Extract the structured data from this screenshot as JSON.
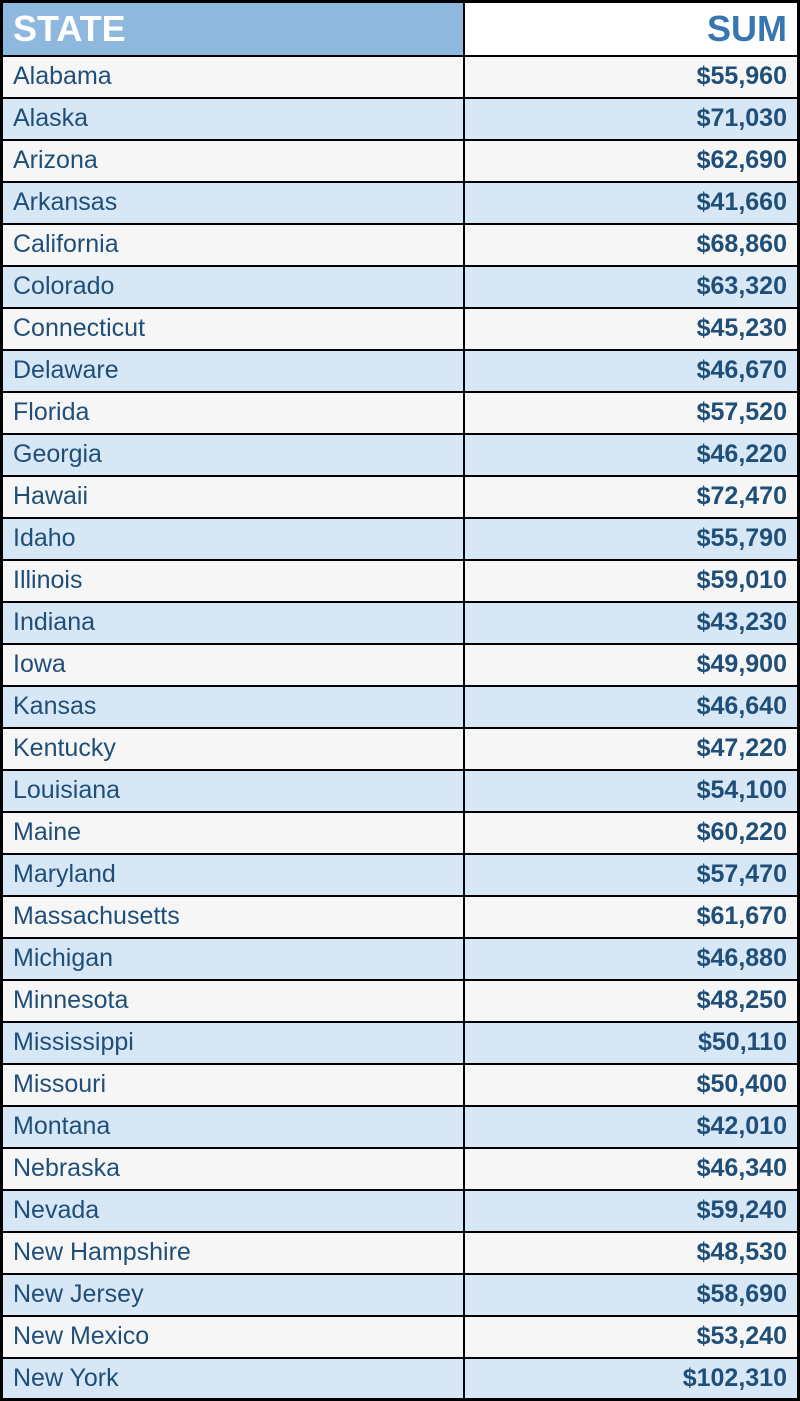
{
  "table": {
    "columns": [
      "STATE",
      "SUM"
    ],
    "header_bg_colors": [
      "#8fb8de",
      "#ffffff"
    ],
    "header_text_colors": [
      "#ffffff",
      "#3876b2"
    ],
    "header_fontsize": 36,
    "header_fontweight": "bold",
    "column_align": [
      "left",
      "right"
    ],
    "column_widths_pct": [
      58,
      42
    ],
    "cell_fontsize": 25,
    "cell_text_color": "#1f4e79",
    "sum_fontweight": "bold",
    "row_stripe_colors": [
      "#f6f6f6",
      "#d7e7f5"
    ],
    "border_color": "#000000",
    "outer_border_width": 3,
    "inner_border_width": 2,
    "rows": [
      {
        "state": "Alabama",
        "sum": "$55,960"
      },
      {
        "state": "Alaska",
        "sum": "$71,030"
      },
      {
        "state": "Arizona",
        "sum": "$62,690"
      },
      {
        "state": "Arkansas",
        "sum": "$41,660"
      },
      {
        "state": "California",
        "sum": "$68,860"
      },
      {
        "state": "Colorado",
        "sum": "$63,320"
      },
      {
        "state": "Connecticut",
        "sum": "$45,230"
      },
      {
        "state": "Delaware",
        "sum": "$46,670"
      },
      {
        "state": "Florida",
        "sum": "$57,520"
      },
      {
        "state": "Georgia",
        "sum": "$46,220"
      },
      {
        "state": "Hawaii",
        "sum": "$72,470"
      },
      {
        "state": "Idaho",
        "sum": "$55,790"
      },
      {
        "state": "Illinois",
        "sum": "$59,010"
      },
      {
        "state": "Indiana",
        "sum": "$43,230"
      },
      {
        "state": "Iowa",
        "sum": "$49,900"
      },
      {
        "state": "Kansas",
        "sum": "$46,640"
      },
      {
        "state": "Kentucky",
        "sum": "$47,220"
      },
      {
        "state": "Louisiana",
        "sum": "$54,100"
      },
      {
        "state": "Maine",
        "sum": "$60,220"
      },
      {
        "state": "Maryland",
        "sum": "$57,470"
      },
      {
        "state": "Massachusetts",
        "sum": "$61,670"
      },
      {
        "state": "Michigan",
        "sum": "$46,880"
      },
      {
        "state": "Minnesota",
        "sum": "$48,250"
      },
      {
        "state": "Mississippi",
        "sum": "$50,110"
      },
      {
        "state": "Missouri",
        "sum": "$50,400"
      },
      {
        "state": "Montana",
        "sum": "$42,010"
      },
      {
        "state": "Nebraska",
        "sum": "$46,340"
      },
      {
        "state": "Nevada",
        "sum": "$59,240"
      },
      {
        "state": "New Hampshire",
        "sum": "$48,530"
      },
      {
        "state": "New Jersey",
        "sum": "$58,690"
      },
      {
        "state": "New Mexico",
        "sum": "$53,240"
      },
      {
        "state": "New York",
        "sum": "$102,310"
      }
    ]
  }
}
